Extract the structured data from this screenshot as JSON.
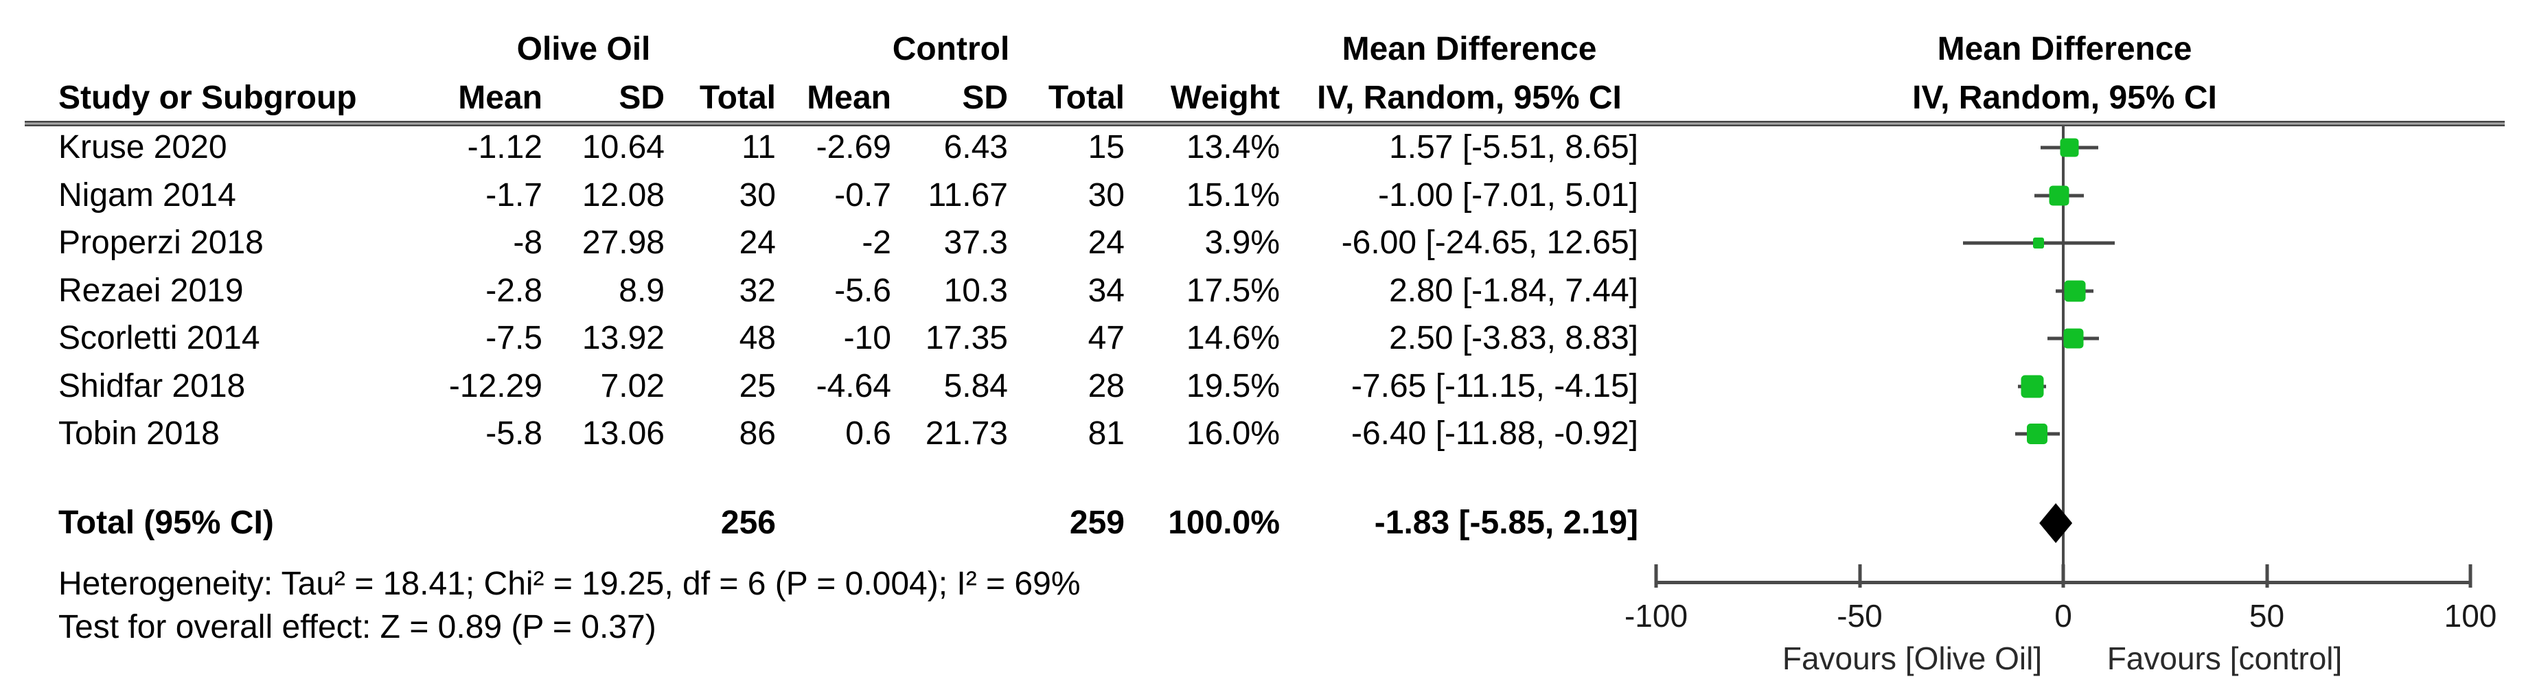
{
  "header": {
    "study_col": "Study or Subgroup",
    "group_experimental": "Olive Oil",
    "group_control": "Control",
    "mean": "Mean",
    "sd": "SD",
    "total": "Total",
    "weight": "Weight",
    "effect_title": "Mean Difference",
    "effect_subtitle": "IV, Random, 95% CI",
    "plot_title": "Mean Difference",
    "plot_subtitle": "IV, Random, 95% CI"
  },
  "footer": {
    "heterogeneity": "Heterogeneity: Tau² = 18.41; Chi² = 19.25, df = 6 (P = 0.004); I² = 69%",
    "overall_effect": "Test for overall effect: Z = 0.89 (P = 0.37)"
  },
  "colors": {
    "marker_green": "#11c026",
    "diamond_black": "#000000",
    "line_gray": "#4a4a4a"
  },
  "chart_data": {
    "type": "scatter",
    "subtype": "forest-plot",
    "effect_measure": "Mean Difference, IV, Random, 95% CI",
    "x_axis": {
      "min": -100,
      "max": 100,
      "ticks": [
        "-100",
        "-50",
        "0",
        "50",
        "100"
      ],
      "tick_values": [
        -100,
        -50,
        0,
        50,
        100
      ],
      "favours_left": "Favours [Olive Oil]",
      "favours_right": "Favours [control]"
    },
    "studies": [
      {
        "name": "Kruse 2020",
        "oo_mean": "-1.12",
        "oo_sd": "10.64",
        "oo_total": "11",
        "c_mean": "-2.69",
        "c_sd": "6.43",
        "c_total": "15",
        "weight": "13.4%",
        "ci_text": "1.57 [-5.51, 8.65]",
        "est": 1.57,
        "lo": -5.51,
        "hi": 8.65,
        "weight_pct": 13.4
      },
      {
        "name": "Nigam 2014",
        "oo_mean": "-1.7",
        "oo_sd": "12.08",
        "oo_total": "30",
        "c_mean": "-0.7",
        "c_sd": "11.67",
        "c_total": "30",
        "weight": "15.1%",
        "ci_text": "-1.00 [-7.01, 5.01]",
        "est": -1.0,
        "lo": -7.01,
        "hi": 5.01,
        "weight_pct": 15.1
      },
      {
        "name": "Properzi 2018",
        "oo_mean": "-8",
        "oo_sd": "27.98",
        "oo_total": "24",
        "c_mean": "-2",
        "c_sd": "37.3",
        "c_total": "24",
        "weight": "3.9%",
        "ci_text": "-6.00 [-24.65, 12.65]",
        "est": -6.0,
        "lo": -24.65,
        "hi": 12.65,
        "weight_pct": 3.9
      },
      {
        "name": "Rezaei 2019",
        "oo_mean": "-2.8",
        "oo_sd": "8.9",
        "oo_total": "32",
        "c_mean": "-5.6",
        "c_sd": "10.3",
        "c_total": "34",
        "weight": "17.5%",
        "ci_text": "2.80 [-1.84, 7.44]",
        "est": 2.8,
        "lo": -1.84,
        "hi": 7.44,
        "weight_pct": 17.5
      },
      {
        "name": "Scorletti 2014",
        "oo_mean": "-7.5",
        "oo_sd": "13.92",
        "oo_total": "48",
        "c_mean": "-10",
        "c_sd": "17.35",
        "c_total": "47",
        "weight": "14.6%",
        "ci_text": "2.50 [-3.83, 8.83]",
        "est": 2.5,
        "lo": -3.83,
        "hi": 8.83,
        "weight_pct": 14.6
      },
      {
        "name": "Shidfar 2018",
        "oo_mean": "-12.29",
        "oo_sd": "7.02",
        "oo_total": "25",
        "c_mean": "-4.64",
        "c_sd": "5.84",
        "c_total": "28",
        "weight": "19.5%",
        "ci_text": "-7.65 [-11.15, -4.15]",
        "est": -7.65,
        "lo": -11.15,
        "hi": -4.15,
        "weight_pct": 19.5
      },
      {
        "name": "Tobin 2018",
        "oo_mean": "-5.8",
        "oo_sd": "13.06",
        "oo_total": "86",
        "c_mean": "0.6",
        "c_sd": "21.73",
        "c_total": "81",
        "weight": "16.0%",
        "ci_text": "-6.40 [-11.88, -0.92]",
        "est": -6.4,
        "lo": -11.88,
        "hi": -0.92,
        "weight_pct": 16.0
      }
    ],
    "total": {
      "label": "Total (95% CI)",
      "oo_total": "256",
      "c_total": "259",
      "weight": "100.0%",
      "ci_text": "-1.83 [-5.85, 2.19]",
      "est": -1.83,
      "lo": -5.85,
      "hi": 2.19
    }
  }
}
